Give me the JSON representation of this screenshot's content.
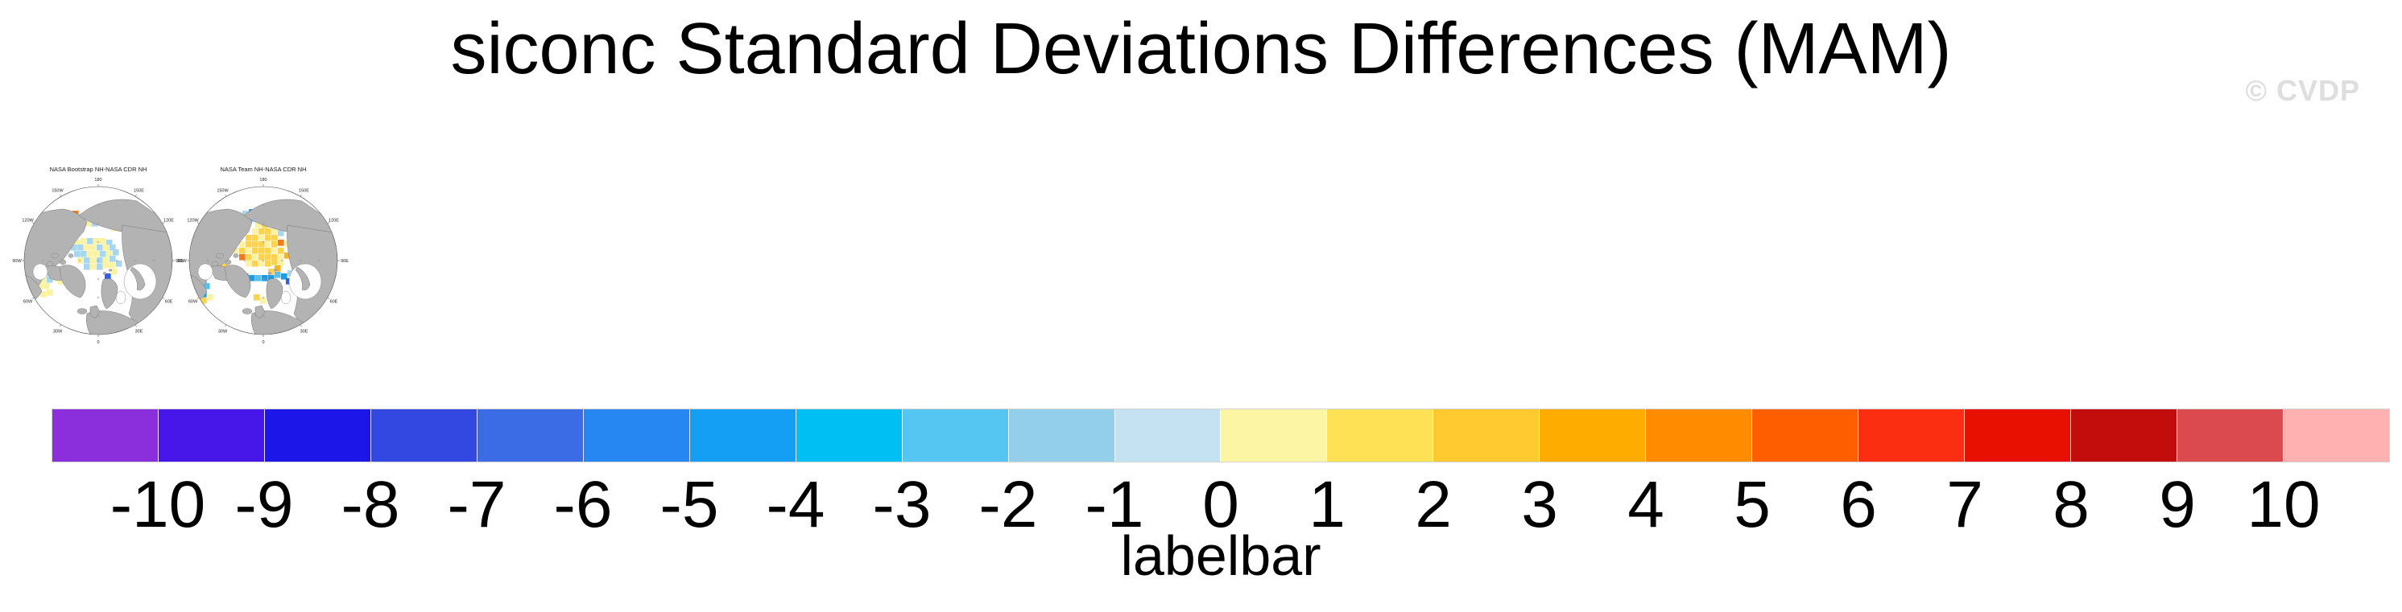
{
  "title": "siconc Standard Deviations Differences (MAM)",
  "watermark": "© CVDP",
  "panels": [
    {
      "title": "NASA Bootstrap NH-NASA CDR NH",
      "cells": [
        [
          78,
          42,
          "o"
        ],
        [
          86,
          46,
          "y"
        ],
        [
          94,
          46,
          "l"
        ],
        [
          102,
          46,
          "y"
        ],
        [
          110,
          44,
          "y"
        ],
        [
          118,
          44,
          "l"
        ],
        [
          126,
          44,
          "y"
        ],
        [
          134,
          44,
          "l"
        ],
        [
          142,
          46,
          "y"
        ],
        [
          150,
          50,
          "l"
        ],
        [
          86,
          54,
          "l"
        ],
        [
          94,
          54,
          "y"
        ],
        [
          102,
          54,
          "l"
        ],
        [
          110,
          52,
          "y"
        ],
        [
          126,
          52,
          "l"
        ],
        [
          142,
          54,
          "y"
        ],
        [
          150,
          58,
          "y"
        ],
        [
          126,
          60,
          "y"
        ],
        [
          134,
          60,
          "l"
        ],
        [
          142,
          62,
          "y"
        ],
        [
          150,
          64,
          "l"
        ],
        [
          158,
          60,
          "y"
        ],
        [
          80,
          78,
          "y"
        ],
        [
          88,
          76,
          "y"
        ],
        [
          96,
          76,
          "l"
        ],
        [
          104,
          76,
          "y"
        ],
        [
          112,
          76,
          "y"
        ],
        [
          120,
          78,
          "l"
        ],
        [
          76,
          84,
          "l"
        ],
        [
          84,
          84,
          "l"
        ],
        [
          92,
          84,
          "y"
        ],
        [
          100,
          84,
          "y"
        ],
        [
          108,
          84,
          "l"
        ],
        [
          116,
          84,
          "y"
        ],
        [
          124,
          84,
          "l"
        ],
        [
          80,
          92,
          "l"
        ],
        [
          88,
          92,
          "l"
        ],
        [
          96,
          92,
          "y"
        ],
        [
          104,
          92,
          "y"
        ],
        [
          112,
          92,
          "l"
        ],
        [
          120,
          92,
          "y"
        ],
        [
          128,
          90,
          "l"
        ],
        [
          84,
          100,
          "y"
        ],
        [
          92,
          100,
          "l"
        ],
        [
          100,
          100,
          "y"
        ],
        [
          108,
          100,
          "l"
        ],
        [
          116,
          100,
          "y"
        ],
        [
          124,
          98,
          "l"
        ],
        [
          92,
          108,
          "l"
        ],
        [
          100,
          108,
          "y"
        ],
        [
          108,
          108,
          "l"
        ],
        [
          116,
          106,
          "y"
        ],
        [
          124,
          106,
          "y"
        ],
        [
          132,
          104,
          "l"
        ],
        [
          126,
          114,
          "y"
        ],
        [
          118,
          120,
          "d"
        ],
        [
          116,
          140,
          "d"
        ],
        [
          34,
          108,
          "l"
        ],
        [
          42,
          108,
          "l"
        ],
        [
          50,
          106,
          "y"
        ],
        [
          34,
          116,
          "y"
        ],
        [
          42,
          116,
          "l"
        ],
        [
          50,
          114,
          "l"
        ],
        [
          58,
          112,
          "y"
        ],
        [
          38,
          124,
          "y"
        ],
        [
          46,
          124,
          "l"
        ],
        [
          54,
          122,
          "y"
        ],
        [
          34,
          132,
          "y"
        ],
        [
          42,
          132,
          "y"
        ],
        [
          54,
          118,
          "l"
        ],
        [
          60,
          126,
          "y"
        ],
        [
          22,
          136,
          "y"
        ],
        [
          30,
          138,
          "y"
        ],
        [
          38,
          142,
          "y"
        ],
        [
          24,
          144,
          "y"
        ],
        [
          46,
          140,
          "y"
        ],
        [
          20,
          128,
          "l"
        ]
      ]
    },
    {
      "title": "NASA Team NH-NASA CDR NH",
      "cells": [
        [
          84,
          42,
          "l"
        ],
        [
          92,
          40,
          "b"
        ],
        [
          100,
          40,
          "b"
        ],
        [
          108,
          40,
          "b"
        ],
        [
          116,
          42,
          "c"
        ],
        [
          124,
          42,
          "l"
        ],
        [
          132,
          44,
          "c"
        ],
        [
          140,
          38,
          "b"
        ],
        [
          148,
          38,
          "l"
        ],
        [
          92,
          48,
          "c"
        ],
        [
          100,
          48,
          "b"
        ],
        [
          108,
          48,
          "l"
        ],
        [
          116,
          48,
          "b"
        ],
        [
          140,
          46,
          "g"
        ],
        [
          148,
          46,
          "c"
        ],
        [
          156,
          50,
          "l"
        ],
        [
          156,
          42,
          "b"
        ],
        [
          100,
          56,
          "y"
        ],
        [
          108,
          56,
          "g"
        ],
        [
          148,
          54,
          "g"
        ],
        [
          96,
          64,
          "y"
        ],
        [
          104,
          64,
          "g"
        ],
        [
          112,
          64,
          "g"
        ],
        [
          120,
          64,
          "y"
        ],
        [
          128,
          66,
          "l"
        ],
        [
          88,
          72,
          "g"
        ],
        [
          96,
          72,
          "g"
        ],
        [
          104,
          72,
          "y"
        ],
        [
          112,
          72,
          "g"
        ],
        [
          120,
          72,
          "g"
        ],
        [
          80,
          80,
          "y"
        ],
        [
          88,
          80,
          "g"
        ],
        [
          96,
          80,
          "g"
        ],
        [
          104,
          80,
          "g"
        ],
        [
          112,
          80,
          "y"
        ],
        [
          120,
          80,
          "g"
        ],
        [
          128,
          78,
          "o"
        ],
        [
          136,
          80,
          "y"
        ],
        [
          72,
          88,
          "y"
        ],
        [
          80,
          88,
          "g"
        ],
        [
          88,
          88,
          "y"
        ],
        [
          96,
          88,
          "g"
        ],
        [
          104,
          88,
          "g"
        ],
        [
          112,
          88,
          "g"
        ],
        [
          120,
          88,
          "y"
        ],
        [
          128,
          88,
          "g"
        ],
        [
          80,
          96,
          "o"
        ],
        [
          88,
          96,
          "g"
        ],
        [
          96,
          96,
          "y"
        ],
        [
          104,
          96,
          "g"
        ],
        [
          112,
          96,
          "g"
        ],
        [
          120,
          96,
          "g"
        ],
        [
          128,
          96,
          "y"
        ],
        [
          136,
          94,
          "G"
        ],
        [
          88,
          104,
          "y"
        ],
        [
          96,
          104,
          "g"
        ],
        [
          104,
          104,
          "y"
        ],
        [
          112,
          104,
          "g"
        ],
        [
          120,
          102,
          "g"
        ],
        [
          128,
          104,
          "y"
        ],
        [
          42,
          98,
          "g"
        ],
        [
          50,
          98,
          "G"
        ],
        [
          58,
          100,
          "g"
        ],
        [
          42,
          106,
          "o"
        ],
        [
          50,
          106,
          "o"
        ],
        [
          58,
          108,
          "g"
        ],
        [
          36,
          112,
          "y"
        ],
        [
          48,
          114,
          "g"
        ],
        [
          60,
          118,
          "b"
        ],
        [
          68,
          120,
          "b"
        ],
        [
          76,
          118,
          "c"
        ],
        [
          84,
          120,
          "b"
        ],
        [
          92,
          122,
          "b"
        ],
        [
          100,
          122,
          "c"
        ],
        [
          108,
          122,
          "b"
        ],
        [
          116,
          122,
          "b"
        ],
        [
          124,
          118,
          "c"
        ],
        [
          132,
          120,
          "b"
        ],
        [
          140,
          116,
          "l"
        ],
        [
          116,
          114,
          "g"
        ],
        [
          124,
          110,
          "G"
        ],
        [
          138,
          126,
          "d"
        ],
        [
          24,
          126,
          "b"
        ],
        [
          32,
          126,
          "c"
        ],
        [
          20,
          134,
          "b"
        ],
        [
          28,
          134,
          "b"
        ],
        [
          36,
          132,
          "c"
        ],
        [
          24,
          142,
          "c"
        ],
        [
          32,
          142,
          "b"
        ],
        [
          20,
          150,
          "c"
        ],
        [
          32,
          150,
          "g"
        ],
        [
          40,
          146,
          "y"
        ],
        [
          98,
          146,
          "g"
        ],
        [
          106,
          150,
          "y"
        ]
      ]
    }
  ],
  "ring_labels": [
    {
      "t": "180",
      "a": 0
    },
    {
      "t": "150E",
      "a": 30
    },
    {
      "t": "120E",
      "a": 60
    },
    {
      "t": "90E",
      "a": 90
    },
    {
      "t": "60E",
      "a": 120
    },
    {
      "t": "30E",
      "a": 150
    },
    {
      "t": "0",
      "a": 180
    },
    {
      "t": "30W",
      "a": 210
    },
    {
      "t": "60W",
      "a": 240
    },
    {
      "t": "90W",
      "a": 270
    },
    {
      "t": "120W",
      "a": 300
    },
    {
      "t": "150W",
      "a": 330
    }
  ],
  "map_palette": {
    "land": "#b3b3b3",
    "coast": "#787878",
    "ocean": "#ffffff",
    "l": "#a9d6ef",
    "c": "#55c1ee",
    "b": "#1e9ce8",
    "d": "#2e62d6",
    "y": "#fbf2a4",
    "g": "#ffd34a",
    "G": "#ffb31e",
    "o": "#f07c1c"
  },
  "labelbar": {
    "caption": "labelbar",
    "tick_labels": [
      "-10",
      "-9",
      "-8",
      "-7",
      "-6",
      "-5",
      "-4",
      "-3",
      "-2",
      "-1",
      "0",
      "1",
      "2",
      "3",
      "4",
      "5",
      "6",
      "7",
      "8",
      "9",
      "10"
    ],
    "colors": [
      "#8b2fdc",
      "#4617e8",
      "#1c17e8",
      "#3348e0",
      "#3c6ce5",
      "#2787f2",
      "#149ff5",
      "#00bff3",
      "#54c6f1",
      "#93cfea",
      "#c5e2f3",
      "#fcf6a4",
      "#ffe155",
      "#ffca30",
      "#feac00",
      "#ff8c00",
      "#ff5e00",
      "#fb2e11",
      "#e81000",
      "#c30d0d",
      "#da4a4e",
      "#ffb0b1"
    ]
  },
  "chart_data": {
    "type": "heatmap",
    "title": "siconc Standard Deviations Differences (MAM)",
    "panels": [
      "NASA Bootstrap NH-NASA CDR NH",
      "NASA Team NH-NASA CDR NH"
    ],
    "projection": "Northern Hemisphere polar stereographic",
    "colorbar": {
      "label": "labelbar",
      "levels": [
        -10,
        -9,
        -8,
        -7,
        -6,
        -5,
        -4,
        -3,
        -2,
        -1,
        0,
        1,
        2,
        3,
        4,
        5,
        6,
        7,
        8,
        9,
        10
      ],
      "colors": [
        "#8b2fdc",
        "#4617e8",
        "#1c17e8",
        "#3348e0",
        "#3c6ce5",
        "#2787f2",
        "#149ff5",
        "#00bff3",
        "#54c6f1",
        "#93cfea",
        "#c5e2f3",
        "#fcf6a4",
        "#ffe155",
        "#ffca30",
        "#feac00",
        "#ff8c00",
        "#ff5e00",
        "#fb2e11",
        "#e81000",
        "#c30d0d",
        "#da4a4e",
        "#ffb0b1"
      ],
      "legend_position": "bottom"
    },
    "watermark": "© CVDP"
  }
}
